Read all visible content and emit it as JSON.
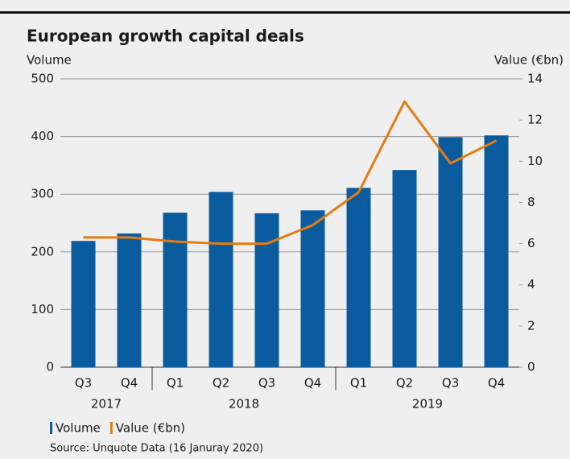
{
  "chart_data": {
    "type": "bar_line",
    "title": "European growth capital deals",
    "ylabel": "Volume",
    "y2label": "Value (€bn)",
    "categories": [
      "Q3",
      "Q4",
      "Q1",
      "Q2",
      "Q3",
      "Q4",
      "Q1",
      "Q2",
      "Q3",
      "Q4"
    ],
    "groups": [
      {
        "label": "2017",
        "size": 2
      },
      {
        "label": "2018",
        "size": 4
      },
      {
        "label": "2019",
        "size": 4
      }
    ],
    "series": [
      {
        "name": "Volume",
        "type": "bar",
        "color": "#0a5c9e",
        "values": [
          219,
          232,
          268,
          304,
          267,
          272,
          311,
          342,
          399,
          402
        ]
      },
      {
        "name": "Value (€bn)",
        "type": "line",
        "axis": "y2",
        "color": "#e57c12",
        "values": [
          6.3,
          6.3,
          6.1,
          6.0,
          6.0,
          6.9,
          8.5,
          12.9,
          9.9,
          11.0
        ]
      }
    ],
    "ylim": [
      0,
      500
    ],
    "yticks": [
      0,
      100,
      200,
      300,
      400,
      500
    ],
    "y2lim": [
      0,
      14
    ],
    "y2ticks": [
      0,
      2,
      4,
      6,
      8,
      10,
      12,
      14
    ],
    "grid": true,
    "legend": "bottom-left",
    "source": "Source: Unquote Data (16 Januray 2020)"
  }
}
